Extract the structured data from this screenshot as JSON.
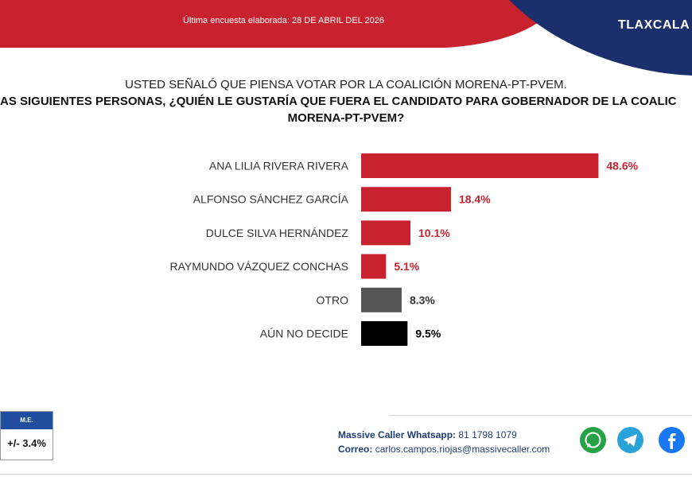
{
  "header": {
    "date_text": "Última encuesta elaborada: 28 DE ABRIL DEL 2026",
    "state": "TLAXCALA",
    "colors": {
      "red": "#c9222f",
      "navy": "#1a2f6b"
    }
  },
  "question": {
    "line1": "USTED SEÑALÓ QUE PIENSA VOTAR POR LA COALICIÓN MORENA-PT-PVEM.",
    "line2": "AS SIGUIENTES PERSONAS, ¿QUIÉN LE GUSTARÍA QUE FUERA EL CANDIDATO PARA GOBERNADOR DE LA COALIC",
    "line3": "MORENA-PT-PVEM?"
  },
  "chart_data": {
    "type": "bar",
    "orientation": "horizontal",
    "categories": [
      "ANA LILIA RIVERA RIVERA",
      "ALFONSO SÁNCHEZ GARCÍA",
      "DULCE SILVA HERNÁNDEZ",
      "RAYMUNDO VÁZQUEZ CONCHAS",
      "OTRO",
      "AÚN NO DECIDE"
    ],
    "values": [
      48.6,
      18.4,
      10.1,
      5.1,
      8.3,
      9.5
    ],
    "value_labels": [
      "48.6%",
      "18.4%",
      "10.1%",
      "5.1%",
      "8.3%",
      "9.5%"
    ],
    "colors": [
      "#c9222f",
      "#c9222f",
      "#c9222f",
      "#c9222f",
      "#555555",
      "#000000"
    ],
    "label_colors": [
      "#c9222f",
      "#c9222f",
      "#c9222f",
      "#c9222f",
      "#333333",
      "#000000"
    ],
    "xlim": [
      0,
      50
    ],
    "grid": false
  },
  "margin_error": {
    "label": "M.E.",
    "value": "+/- 3.4%"
  },
  "contact": {
    "whatsapp_label": "Massive Caller Whatsapp:",
    "whatsapp_number": "81 1798 1079",
    "email_label": "Correo:",
    "email": "carlos.campos.riojas@massivecaller.com"
  },
  "social": {
    "icons": [
      "whatsapp-icon",
      "telegram-icon",
      "facebook-icon"
    ]
  }
}
